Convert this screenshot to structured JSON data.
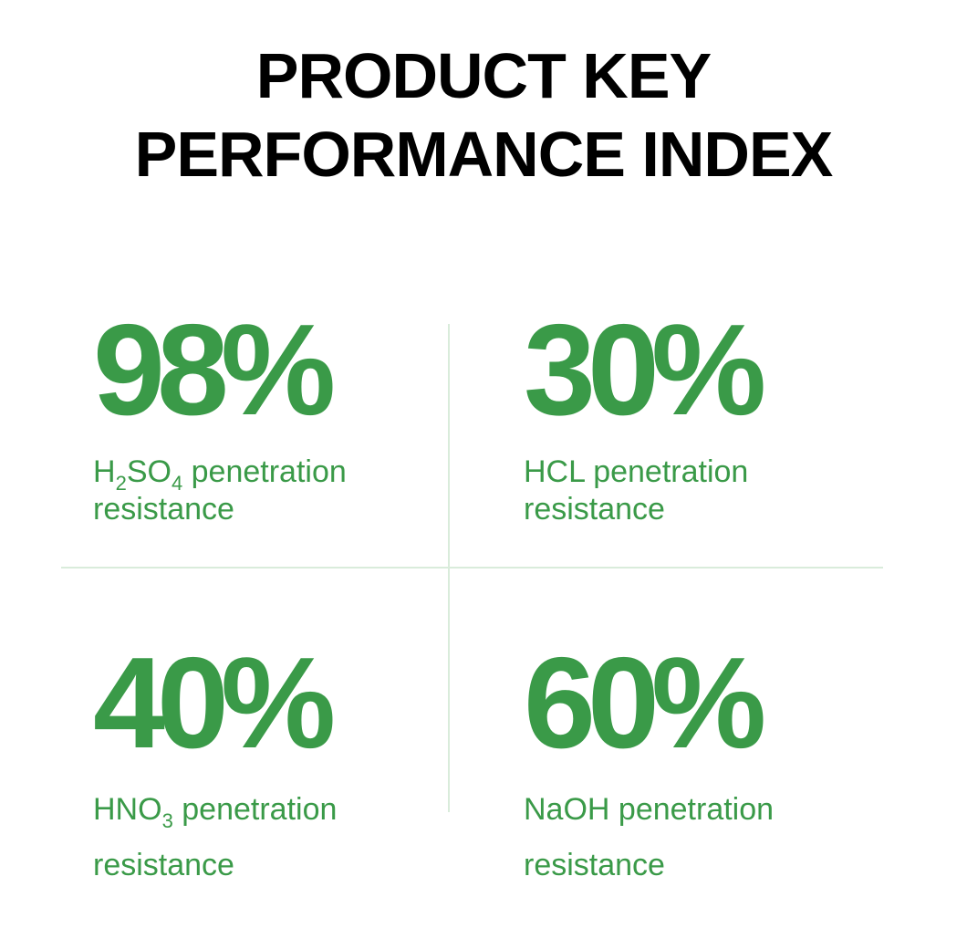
{
  "title": {
    "line1": "PRODUCT KEY",
    "line2": "PERFORMANCE INDEX"
  },
  "colors": {
    "accent": "#3a9a48",
    "divider": "#d9ecdb",
    "title": "#000000"
  },
  "metrics": [
    {
      "value": "98%",
      "label": {
        "p1": "H",
        "s1": "2",
        "p2": "SO",
        "s2": "4",
        "p3": " penetration",
        "line2": "resistance"
      }
    },
    {
      "value": "30%",
      "label": {
        "p1": "HCL penetration",
        "line2": "resistance"
      }
    },
    {
      "value": "40%",
      "label": {
        "p1": "HNO",
        "s1": "3",
        "p3": " penetration",
        "line2": "resistance"
      }
    },
    {
      "value": "60%",
      "label": {
        "p1": "NaOH penetration",
        "line2": "resistance"
      }
    }
  ]
}
